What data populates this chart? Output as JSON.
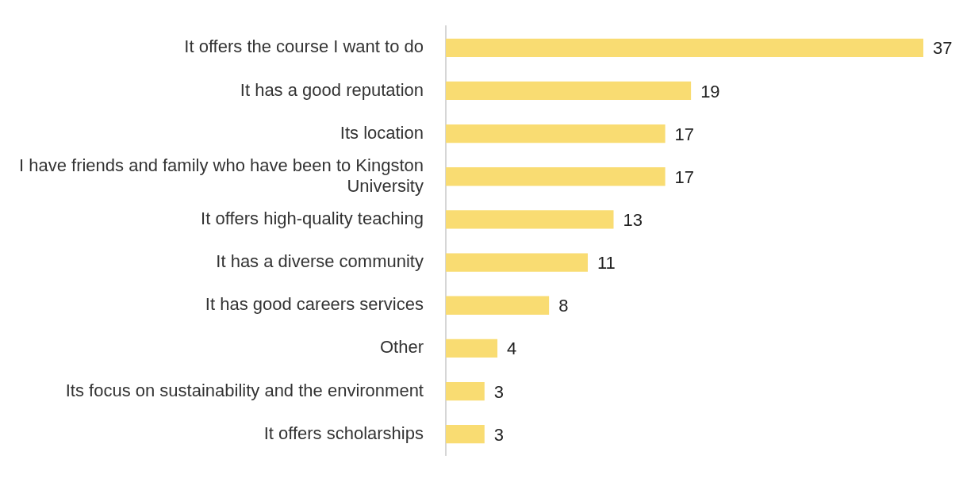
{
  "chart_data": {
    "type": "bar",
    "orientation": "horizontal",
    "categories": [
      "It offers the course I want to do",
      "It has a good reputation",
      "Its location",
      "I have friends and family who have been to Kingston University",
      "It offers high-quality teaching",
      "It has a diverse community",
      "It has good careers services",
      "Other",
      "Its focus on sustainability and the environment",
      "It offers scholarships"
    ],
    "values": [
      37,
      19,
      17,
      17,
      13,
      11,
      8,
      4,
      3,
      3
    ],
    "color": "#f9dc72",
    "data_labels": true,
    "legend": false
  }
}
